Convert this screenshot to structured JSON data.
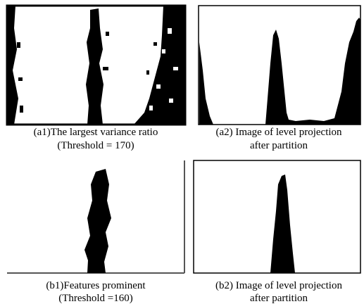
{
  "panels": [
    {
      "caption": [
        "(a1)The largest variance ratio",
        "(Threshold = 170)"
      ]
    },
    {
      "caption": [
        "(a2) Image of level projection",
        "after partition"
      ]
    },
    {
      "caption": [
        "(b1)Features prominent",
        "(Threshold =160)"
      ]
    },
    {
      "caption": [
        "(b2) Image of level projection",
        "after partition"
      ]
    }
  ]
}
